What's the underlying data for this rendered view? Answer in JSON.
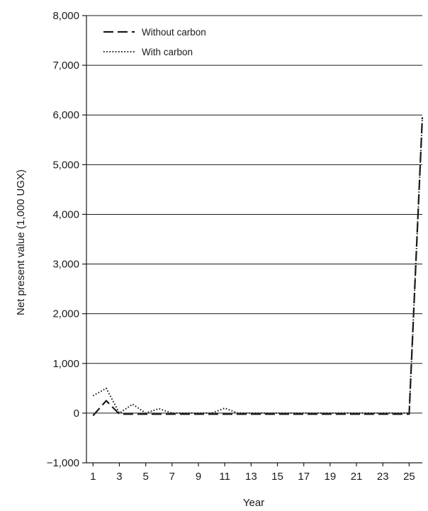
{
  "chart_data": {
    "type": "line",
    "title": "",
    "xlabel": "Year",
    "ylabel": "Net present value (1,000 UGX)",
    "x": [
      1,
      2,
      3,
      4,
      5,
      6,
      7,
      8,
      9,
      10,
      11,
      12,
      13,
      14,
      15,
      16,
      17,
      18,
      19,
      20,
      21,
      22,
      23,
      24,
      25,
      26
    ],
    "xticks": [
      "1",
      "3",
      "5",
      "7",
      "9",
      "11",
      "13",
      "15",
      "17",
      "19",
      "21",
      "23",
      "25"
    ],
    "xtick_values": [
      1,
      3,
      5,
      7,
      9,
      11,
      13,
      15,
      17,
      19,
      21,
      23,
      25
    ],
    "yticks": [
      "−1,000",
      "0",
      "1,000",
      "2,000",
      "3,000",
      "4,000",
      "5,000",
      "6,000",
      "7,000",
      "8,000"
    ],
    "ytick_values": [
      -1000,
      0,
      1000,
      2000,
      3000,
      4000,
      5000,
      6000,
      7000,
      8000
    ],
    "ylim": [
      -1000,
      8000
    ],
    "xlim": [
      0.5,
      26
    ],
    "grid": "horizontal",
    "legend_position": "top-left",
    "series": [
      {
        "name": "Without carbon",
        "style": "dashed",
        "color": "#1a1a1a",
        "values": [
          -50,
          250,
          -20,
          -20,
          -20,
          -20,
          -20,
          -20,
          -20,
          -20,
          -20,
          -20,
          -20,
          -20,
          -20,
          -20,
          -20,
          -20,
          -20,
          -20,
          -20,
          -20,
          -20,
          -20,
          -20,
          5950
        ]
      },
      {
        "name": "With carbon",
        "style": "dotted",
        "color": "#1a1a1a",
        "values": [
          350,
          500,
          0,
          180,
          0,
          90,
          0,
          0,
          0,
          0,
          100,
          0,
          0,
          0,
          0,
          0,
          0,
          0,
          0,
          0,
          0,
          0,
          0,
          0,
          0,
          5950
        ]
      }
    ]
  }
}
